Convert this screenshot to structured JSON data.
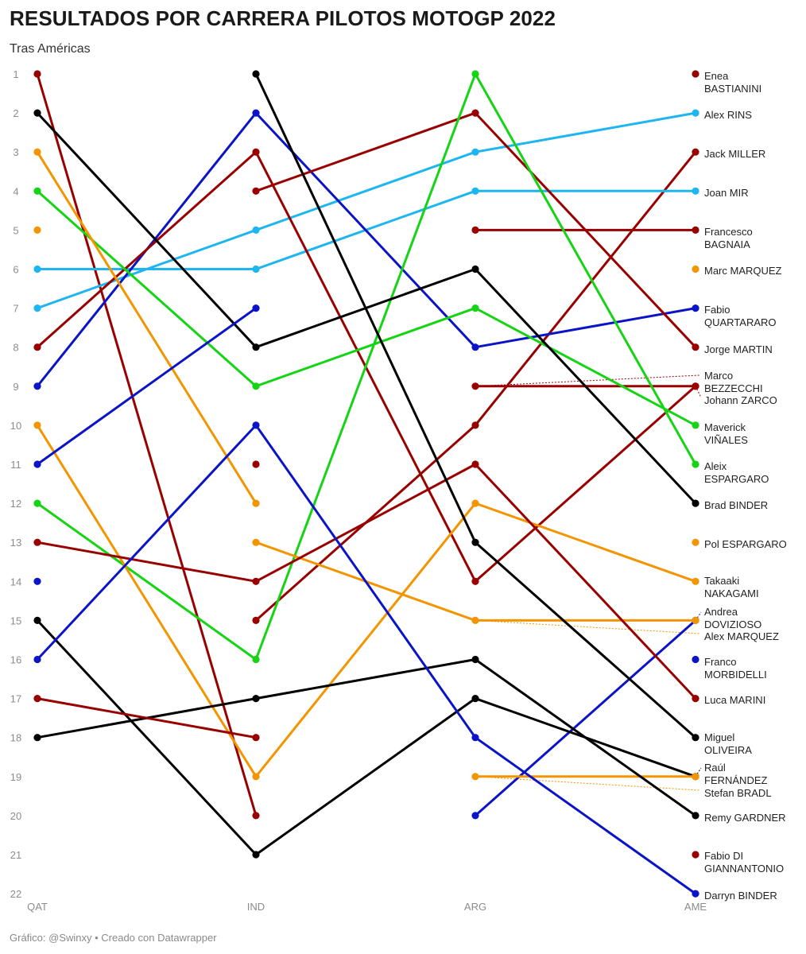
{
  "title": "RESULTADOS POR CARRERA PILOTOS MOTOGP 2022",
  "subtitle": "Tras Américas",
  "footer": "Gráfico: @Swinxy • Creado con Datawrapper",
  "colors": {
    "red": "#990000",
    "black": "#000000",
    "orange": "#f29500",
    "green": "#14d414",
    "cyan": "#1db6f0",
    "blue": "#0b14c7",
    "axis_text": "#8c8c8c"
  },
  "chart_data": {
    "type": "line",
    "title": "RESULTADOS POR CARRERA PILOTOS MOTOGP 2022",
    "subtitle": "Tras Américas",
    "x": [
      "QAT",
      "IND",
      "ARG",
      "AME"
    ],
    "y_ticks": [
      1,
      2,
      3,
      4,
      5,
      6,
      7,
      8,
      9,
      10,
      11,
      12,
      13,
      14,
      15,
      16,
      17,
      18,
      19,
      20,
      21,
      22
    ],
    "ylim": [
      1,
      22
    ],
    "y_reversed": true,
    "grid": false,
    "legend": "direct labels at right",
    "series": [
      {
        "name": "Enea BASTIANINI",
        "color": "red",
        "values": [
          1,
          20,
          null,
          1
        ]
      },
      {
        "name": "Alex RINS",
        "color": "cyan",
        "values": [
          7,
          5,
          3,
          2
        ]
      },
      {
        "name": "Jack MILLER",
        "color": "red",
        "values": [
          null,
          15,
          10,
          3
        ]
      },
      {
        "name": "Joan MIR",
        "color": "cyan",
        "values": [
          6,
          6,
          4,
          4
        ]
      },
      {
        "name": "Francesco BAGNAIA",
        "color": "red",
        "values": [
          null,
          null,
          5,
          5
        ]
      },
      {
        "name": "Marc MARQUEZ",
        "color": "orange",
        "values": [
          5,
          null,
          null,
          6
        ]
      },
      {
        "name": "Fabio QUARTARARO",
        "color": "blue",
        "values": [
          9,
          2,
          8,
          7
        ]
      },
      {
        "name": "Jorge MARTIN",
        "color": "red",
        "values": [
          null,
          4,
          2,
          8
        ]
      },
      {
        "name": "Marco BEZZECCHI",
        "color": "red",
        "values": [
          null,
          null,
          9,
          9
        ]
      },
      {
        "name": "Johann ZARCO",
        "color": "red",
        "values": [
          8,
          3,
          14,
          9
        ]
      },
      {
        "name": "Maverick VIÑALES",
        "color": "green",
        "values": [
          4,
          9,
          7,
          10
        ]
      },
      {
        "name": "Aleix ESPARGARO",
        "color": "green",
        "values": [
          12,
          16,
          1,
          11
        ]
      },
      {
        "name": "Brad BINDER",
        "color": "black",
        "values": [
          2,
          8,
          6,
          12
        ]
      },
      {
        "name": "Pol ESPARGARO",
        "color": "orange",
        "values": [
          3,
          12,
          null,
          13
        ]
      },
      {
        "name": "Takaaki NAKAGAMI",
        "color": "orange",
        "values": [
          10,
          19,
          12,
          14
        ]
      },
      {
        "name": "Andrea DOVIZIOSO",
        "color": "blue",
        "values": [
          14,
          null,
          20,
          15
        ]
      },
      {
        "name": "Alex MARQUEZ",
        "color": "orange",
        "values": [
          null,
          13,
          15,
          15
        ]
      },
      {
        "name": "Franco MORBIDELLI",
        "color": "blue",
        "values": [
          11,
          7,
          null,
          16
        ]
      },
      {
        "name": "Luca MARINI",
        "color": "red",
        "values": [
          13,
          14,
          11,
          17
        ]
      },
      {
        "name": "Miguel OLIVEIRA",
        "color": "black",
        "values": [
          null,
          1,
          13,
          18
        ]
      },
      {
        "name": "Raúl FERNÁNDEZ",
        "color": "black",
        "values": [
          15,
          21,
          17,
          19
        ]
      },
      {
        "name": "Stefan BRADL",
        "color": "orange",
        "values": [
          null,
          null,
          19,
          19
        ]
      },
      {
        "name": "Remy GARDNER",
        "color": "black",
        "values": [
          18,
          17,
          16,
          20
        ]
      },
      {
        "name": "Fabio DI GIANNANTONIO",
        "color": "red",
        "values": [
          17,
          18,
          null,
          21
        ]
      },
      {
        "name": "Darryn BINDER",
        "color": "blue",
        "values": [
          16,
          10,
          18,
          22
        ]
      },
      {
        "name": "Jorge MARTIN (QAT)",
        "color": "red",
        "values": [
          null,
          11,
          null,
          null
        ]
      }
    ]
  },
  "right_labels": [
    {
      "lines": [
        "Enea",
        "BASTIANINI"
      ],
      "color": "red",
      "dot": 1
    },
    {
      "lines": [
        "Alex RINS"
      ],
      "color": "cyan",
      "dot": 2
    },
    {
      "lines": [
        "Jack MILLER"
      ],
      "color": "red",
      "dot": 3
    },
    {
      "lines": [
        "Joan MIR"
      ],
      "color": "cyan",
      "dot": 4
    },
    {
      "lines": [
        "Francesco",
        "BAGNAIA"
      ],
      "color": "red",
      "dot": 5
    },
    {
      "lines": [
        "Marc MARQUEZ"
      ],
      "color": "orange",
      "dot": 6
    },
    {
      "lines": [
        "Fabio",
        "QUARTARARO"
      ],
      "color": "blue",
      "dot": 7
    },
    {
      "lines": [
        "Jorge MARTIN"
      ],
      "color": "red",
      "dot": 8
    },
    {
      "lines": [
        "Marco",
        "BEZZECCHI"
      ],
      "color": "red",
      "dot": 9
    },
    {
      "lines": [
        "Johann ZARCO"
      ],
      "color": "red",
      "dot": 9
    },
    {
      "lines": [
        "Maverick",
        "VIÑALES"
      ],
      "color": "green",
      "dot": 10
    },
    {
      "lines": [
        "Aleix",
        "ESPARGARO"
      ],
      "color": "green",
      "dot": 11
    },
    {
      "lines": [
        "Brad BINDER"
      ],
      "color": "black",
      "dot": 12
    },
    {
      "lines": [
        "Pol ESPARGARO"
      ],
      "color": "orange",
      "dot": 13
    },
    {
      "lines": [
        "Takaaki",
        "NAKAGAMI"
      ],
      "color": "orange",
      "dot": 14
    },
    {
      "lines": [
        "Andrea",
        "DOVIZIOSO"
      ],
      "color": "blue",
      "dot": 15
    },
    {
      "lines": [
        "Alex MARQUEZ"
      ],
      "color": "orange",
      "dot": 15
    },
    {
      "lines": [
        "Franco",
        "MORBIDELLI"
      ],
      "color": "blue",
      "dot": 16
    },
    {
      "lines": [
        "Luca MARINI"
      ],
      "color": "red",
      "dot": 17
    },
    {
      "lines": [
        "Miguel",
        "OLIVEIRA"
      ],
      "color": "black",
      "dot": 18
    },
    {
      "lines": [
        "Raúl",
        "FERNÁNDEZ"
      ],
      "color": "black",
      "dot": 19
    },
    {
      "lines": [
        "Stefan BRADL"
      ],
      "color": "orange",
      "dot": 19
    },
    {
      "lines": [
        "Remy GARDNER"
      ],
      "color": "black",
      "dot": 20
    },
    {
      "lines": [
        "Fabio DI",
        "GIANNANTONIO"
      ],
      "color": "red",
      "dot": 21
    },
    {
      "lines": [
        "Darryn BINDER"
      ],
      "color": "blue",
      "dot": 22
    }
  ]
}
